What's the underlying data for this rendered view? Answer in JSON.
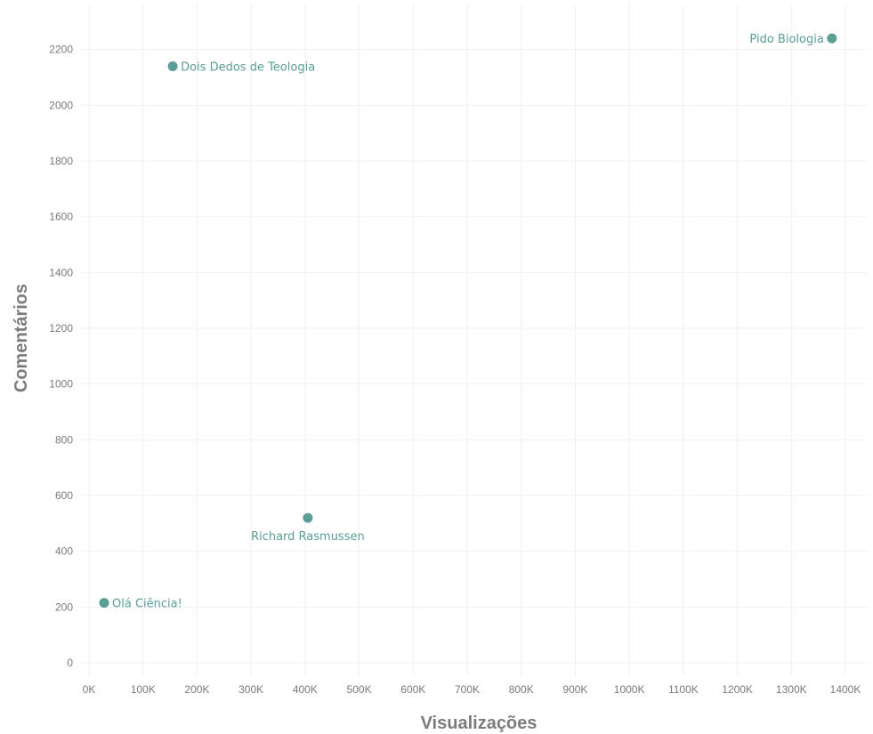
{
  "chart_data": {
    "type": "scatter",
    "xlabel": "Visualizações",
    "ylabel": "Comentários",
    "xlim": [
      0,
      1400000
    ],
    "ylim": [
      0,
      2250
    ],
    "xticks": [
      0,
      100000,
      200000,
      300000,
      400000,
      500000,
      600000,
      700000,
      800000,
      900000,
      1000000,
      1100000,
      1200000,
      1300000,
      1400000
    ],
    "xtick_labels": [
      "0K",
      "100K",
      "200K",
      "300K",
      "400K",
      "500K",
      "600K",
      "700K",
      "800K",
      "900K",
      "1000K",
      "1100K",
      "1200K",
      "1300K",
      "1400K"
    ],
    "yticks": [
      0,
      200,
      400,
      600,
      800,
      1000,
      1200,
      1400,
      1600,
      1800,
      2000,
      2200
    ],
    "ytick_labels": [
      "0",
      "200",
      "400",
      "600",
      "800",
      "1000",
      "1200",
      "1400",
      "1600",
      "1800",
      "2000",
      "2200"
    ],
    "grid": true,
    "color": "#5a9e96",
    "points": [
      {
        "label": "Pido Biologia",
        "x": 1375000,
        "y": 2240,
        "label_pos": "left"
      },
      {
        "label": "Dois Dedos de Teologia",
        "x": 155000,
        "y": 2140,
        "label_pos": "right"
      },
      {
        "label": "Richard Rasmussen",
        "x": 405000,
        "y": 520,
        "label_pos": "below"
      },
      {
        "label": "Olá  Ciência!",
        "x": 28000,
        "y": 215,
        "label_pos": "right"
      }
    ]
  }
}
